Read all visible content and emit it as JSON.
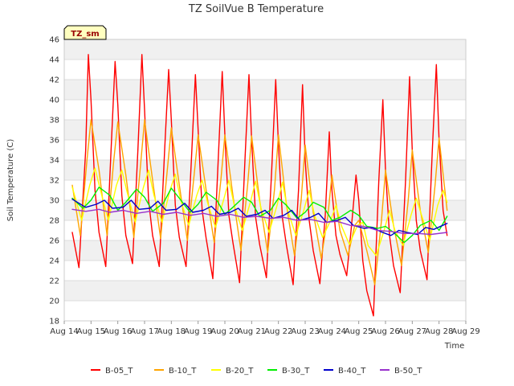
{
  "chart_data": {
    "type": "line",
    "title": "TZ SoilVue B Temperature",
    "badge": "TZ_sm",
    "xlabel": "Time",
    "ylabel": "Soil Temperature (C)",
    "ylim": [
      18,
      46
    ],
    "yticks": [
      18,
      20,
      22,
      24,
      26,
      28,
      30,
      32,
      34,
      36,
      38,
      40,
      42,
      44,
      46
    ],
    "xlim": [
      "2019-08-14",
      "2019-08-29"
    ],
    "xticks": [
      "Aug 14",
      "Aug 15",
      "Aug 16",
      "Aug 17",
      "Aug 18",
      "Aug 19",
      "Aug 20",
      "Aug 21",
      "Aug 22",
      "Aug 23",
      "Aug 24",
      "Aug 25",
      "Aug 26",
      "Aug 27",
      "Aug 28",
      "Aug 29"
    ],
    "grid": "horizontal bands",
    "legend_position": "bottom",
    "x_unit_note": "x values are day of August",
    "series": [
      {
        "name": "B-05_T",
        "color": "#ff0000",
        "x": [
          14.3,
          14.55,
          14.8,
          14.9,
          15.0,
          15.15,
          15.3,
          15.55,
          15.75,
          15.9,
          16.0,
          16.15,
          16.3,
          16.55,
          16.75,
          16.9,
          17.0,
          17.15,
          17.3,
          17.55,
          17.75,
          17.9,
          18.0,
          18.15,
          18.3,
          18.55,
          18.75,
          18.9,
          19.0,
          19.15,
          19.3,
          19.55,
          19.75,
          19.9,
          20.0,
          20.15,
          20.3,
          20.55,
          20.75,
          20.9,
          21.0,
          21.15,
          21.3,
          21.55,
          21.75,
          21.9,
          22.0,
          22.15,
          22.3,
          22.55,
          22.75,
          22.9,
          23.0,
          23.15,
          23.3,
          23.55,
          23.75,
          23.9,
          24.0,
          24.15,
          24.3,
          24.55,
          24.75,
          24.9,
          25.0,
          25.15,
          25.3,
          25.55,
          25.75,
          25.9,
          26.0,
          26.15,
          26.3,
          26.55,
          26.75,
          26.9,
          27.0,
          27.15,
          27.3,
          27.55,
          27.75,
          27.9,
          28.0,
          28.15,
          28.3
        ],
        "values": [
          26.8,
          23.3,
          35.0,
          44.5,
          40.0,
          31.0,
          26.8,
          23.4,
          35.0,
          43.8,
          39.5,
          30.5,
          26.5,
          23.7,
          35.0,
          44.5,
          39.0,
          30.0,
          26.5,
          23.4,
          35.0,
          43.0,
          38.0,
          29.5,
          26.3,
          23.4,
          34.0,
          42.5,
          37.0,
          29.0,
          26.2,
          22.2,
          34.0,
          42.8,
          36.5,
          28.5,
          25.8,
          21.8,
          34.0,
          42.5,
          36.0,
          28.3,
          25.6,
          22.3,
          33.0,
          42.0,
          35.5,
          28.2,
          25.5,
          21.6,
          31.0,
          41.5,
          34.0,
          28.0,
          25.0,
          21.7,
          28.5,
          36.8,
          31.0,
          26.5,
          24.6,
          22.5,
          28.0,
          32.5,
          30.0,
          24.0,
          21.0,
          18.5,
          32.0,
          40.0,
          33.0,
          26.5,
          23.5,
          20.8,
          32.0,
          42.3,
          35.0,
          28.0,
          25.0,
          22.1,
          35.0,
          43.5,
          36.0,
          29.0,
          26.5
        ]
      },
      {
        "name": "B-10_T",
        "color": "#ffa500",
        "x": [
          14.3,
          14.6,
          14.85,
          15.0,
          15.3,
          15.6,
          15.85,
          16.0,
          16.3,
          16.6,
          16.85,
          17.0,
          17.3,
          17.6,
          17.85,
          18.0,
          18.3,
          18.6,
          18.85,
          19.0,
          19.3,
          19.6,
          19.85,
          20.0,
          20.3,
          20.6,
          20.85,
          21.0,
          21.3,
          21.6,
          21.85,
          22.0,
          22.3,
          22.6,
          22.85,
          23.0,
          23.3,
          23.6,
          23.85,
          24.0,
          24.3,
          24.6,
          24.85,
          25.0,
          25.3,
          25.6,
          25.85,
          26.0,
          26.3,
          26.6,
          26.85,
          27.0,
          27.3,
          27.6,
          27.85,
          28.0,
          28.3
        ],
        "values": [
          31.5,
          26.5,
          34.0,
          38.0,
          33.0,
          26.5,
          34.0,
          37.8,
          32.5,
          26.3,
          33.5,
          38.0,
          32.0,
          26.2,
          33.0,
          37.2,
          31.5,
          26.0,
          32.5,
          36.5,
          31.0,
          25.8,
          32.0,
          36.5,
          30.5,
          25.0,
          31.5,
          36.4,
          30.0,
          24.8,
          31.0,
          36.5,
          29.5,
          24.5,
          30.0,
          35.5,
          28.8,
          24.2,
          28.5,
          32.5,
          27.0,
          24.5,
          27.5,
          28.0,
          25.0,
          21.6,
          28.0,
          33.0,
          27.5,
          23.5,
          30.0,
          35.0,
          29.0,
          24.8,
          31.5,
          36.2,
          29.0
        ]
      },
      {
        "name": "B-20_T",
        "color": "#ffff00",
        "x": [
          14.3,
          14.65,
          14.95,
          15.15,
          15.35,
          15.65,
          15.95,
          16.15,
          16.35,
          16.65,
          16.95,
          17.15,
          17.35,
          17.65,
          17.95,
          18.15,
          18.35,
          18.65,
          18.95,
          19.15,
          19.35,
          19.65,
          19.95,
          20.15,
          20.35,
          20.65,
          20.95,
          21.15,
          21.35,
          21.65,
          21.95,
          22.15,
          22.35,
          22.65,
          22.95,
          23.15,
          23.35,
          23.65,
          23.95,
          24.15,
          24.35,
          24.65,
          24.95,
          25.15,
          25.35,
          25.65,
          25.95,
          26.15,
          26.35,
          26.65,
          26.95,
          27.15,
          27.35,
          27.65,
          27.95,
          28.15,
          28.3
        ],
        "values": [
          31.3,
          28.0,
          31.5,
          33.2,
          31.0,
          28.0,
          31.5,
          33.0,
          30.8,
          27.8,
          31.2,
          33.0,
          30.5,
          27.8,
          31.0,
          32.6,
          30.0,
          27.5,
          30.5,
          32.0,
          29.8,
          27.3,
          30.0,
          32.0,
          29.5,
          27.0,
          29.8,
          31.9,
          29.2,
          26.8,
          29.5,
          31.8,
          29.0,
          26.5,
          29.0,
          31.0,
          28.5,
          26.3,
          28.0,
          29.5,
          27.5,
          25.6,
          27.5,
          27.8,
          25.5,
          24.5,
          27.0,
          29.0,
          27.0,
          25.5,
          28.5,
          30.2,
          28.5,
          26.0,
          29.5,
          31.0,
          29.8
        ]
      },
      {
        "name": "B-30_T",
        "color": "#00ee00",
        "x": [
          14.3,
          14.7,
          15.0,
          15.3,
          15.7,
          16.0,
          16.3,
          16.7,
          17.0,
          17.3,
          17.7,
          18.0,
          18.3,
          18.7,
          19.0,
          19.3,
          19.7,
          20.0,
          20.3,
          20.7,
          21.0,
          21.3,
          21.7,
          22.0,
          22.3,
          22.7,
          23.0,
          23.3,
          23.7,
          24.0,
          24.3,
          24.7,
          25.0,
          25.3,
          25.7,
          26.0,
          26.3,
          26.7,
          27.0,
          27.3,
          27.7,
          28.0,
          28.3
        ],
        "values": [
          30.2,
          29.2,
          30.0,
          31.3,
          30.5,
          29.0,
          29.8,
          31.1,
          30.3,
          28.9,
          29.7,
          31.2,
          30.2,
          28.8,
          29.6,
          30.8,
          30.0,
          28.6,
          29.3,
          30.3,
          29.8,
          28.4,
          29.0,
          30.2,
          29.5,
          28.2,
          28.8,
          29.8,
          29.3,
          28.0,
          28.3,
          29.0,
          28.5,
          27.4,
          27.2,
          27.4,
          26.8,
          25.8,
          26.5,
          27.5,
          28.0,
          27.0,
          28.4
        ]
      },
      {
        "name": "B-40_T",
        "color": "#0000cc",
        "x": [
          14.3,
          14.8,
          15.2,
          15.5,
          15.8,
          16.2,
          16.5,
          16.8,
          17.2,
          17.5,
          17.8,
          18.2,
          18.5,
          18.8,
          19.2,
          19.5,
          19.8,
          20.2,
          20.5,
          20.8,
          21.2,
          21.5,
          21.8,
          22.2,
          22.5,
          22.8,
          23.2,
          23.5,
          23.8,
          24.2,
          24.5,
          24.8,
          25.2,
          25.5,
          25.8,
          26.2,
          26.5,
          26.8,
          27.2,
          27.5,
          27.8,
          28.3
        ],
        "values": [
          30.1,
          29.3,
          29.6,
          30.0,
          29.2,
          29.3,
          30.0,
          29.1,
          29.2,
          29.9,
          29.0,
          29.1,
          29.7,
          28.8,
          29.0,
          29.4,
          28.6,
          28.8,
          29.2,
          28.4,
          28.6,
          29.0,
          28.2,
          28.5,
          29.0,
          28.0,
          28.3,
          28.7,
          27.8,
          28.0,
          28.3,
          27.5,
          27.2,
          27.3,
          26.9,
          26.5,
          27.0,
          26.8,
          26.6,
          27.3,
          27.1,
          27.7
        ]
      },
      {
        "name": "B-50_T",
        "color": "#9933cc",
        "x": [
          14.3,
          14.8,
          15.3,
          15.7,
          16.2,
          16.7,
          17.2,
          17.7,
          18.2,
          18.7,
          19.2,
          19.7,
          20.2,
          20.7,
          21.2,
          21.7,
          22.2,
          22.7,
          23.2,
          23.7,
          24.2,
          24.7,
          25.2,
          25.7,
          26.2,
          26.7,
          27.2,
          27.7,
          28.3
        ],
        "values": [
          29.1,
          28.9,
          29.1,
          28.8,
          29.0,
          28.7,
          28.9,
          28.6,
          28.8,
          28.5,
          28.7,
          28.4,
          28.6,
          28.3,
          28.4,
          28.2,
          28.3,
          28.0,
          28.1,
          27.8,
          27.9,
          27.5,
          27.4,
          27.0,
          26.9,
          26.7,
          26.7,
          26.6,
          26.8
        ]
      }
    ]
  }
}
